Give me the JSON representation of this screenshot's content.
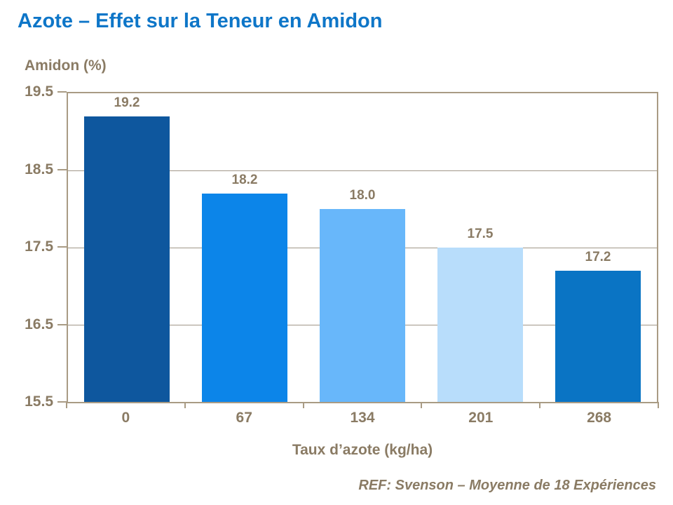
{
  "title": "Azote – Effet sur la Teneur en Amidon",
  "footer": {
    "reference": "REF: Svenson – Moyenne de 18 Expériences"
  },
  "colors": {
    "title_blue": "#0e76c8",
    "axis_text_brown": "#8a7b64",
    "plot_border_tan": "#a99b84",
    "gridline_gray": "#a09688"
  },
  "chart_data": {
    "type": "bar",
    "title": "Azote – Effet sur la Teneur en Amidon",
    "ylabel": "Amidon (%)",
    "xlabel": "Taux d’azote (kg/ha)",
    "categories": [
      "0",
      "67",
      "134",
      "201",
      "268"
    ],
    "values": [
      19.2,
      18.2,
      18.0,
      17.5,
      17.2
    ],
    "value_labels": [
      "19.2",
      "18.2",
      "18.0",
      "17.5",
      "17.2"
    ],
    "bar_colors": [
      "#0e579e",
      "#0c85e9",
      "#68b7fa",
      "#b8ddfb",
      "#0a74c4"
    ],
    "ylim": [
      15.5,
      19.5
    ],
    "yticks": [
      19.5,
      18.5,
      17.5,
      16.5,
      15.5
    ],
    "ytick_labels": [
      "19.5",
      "18.5",
      "17.5",
      "16.5",
      "15.5"
    ],
    "gridlines": [
      18.5,
      17.5,
      16.5
    ],
    "grid": "horizontal",
    "legend": "none",
    "annotation": "REF: Svenson – Moyenne de 18 Expériences"
  }
}
